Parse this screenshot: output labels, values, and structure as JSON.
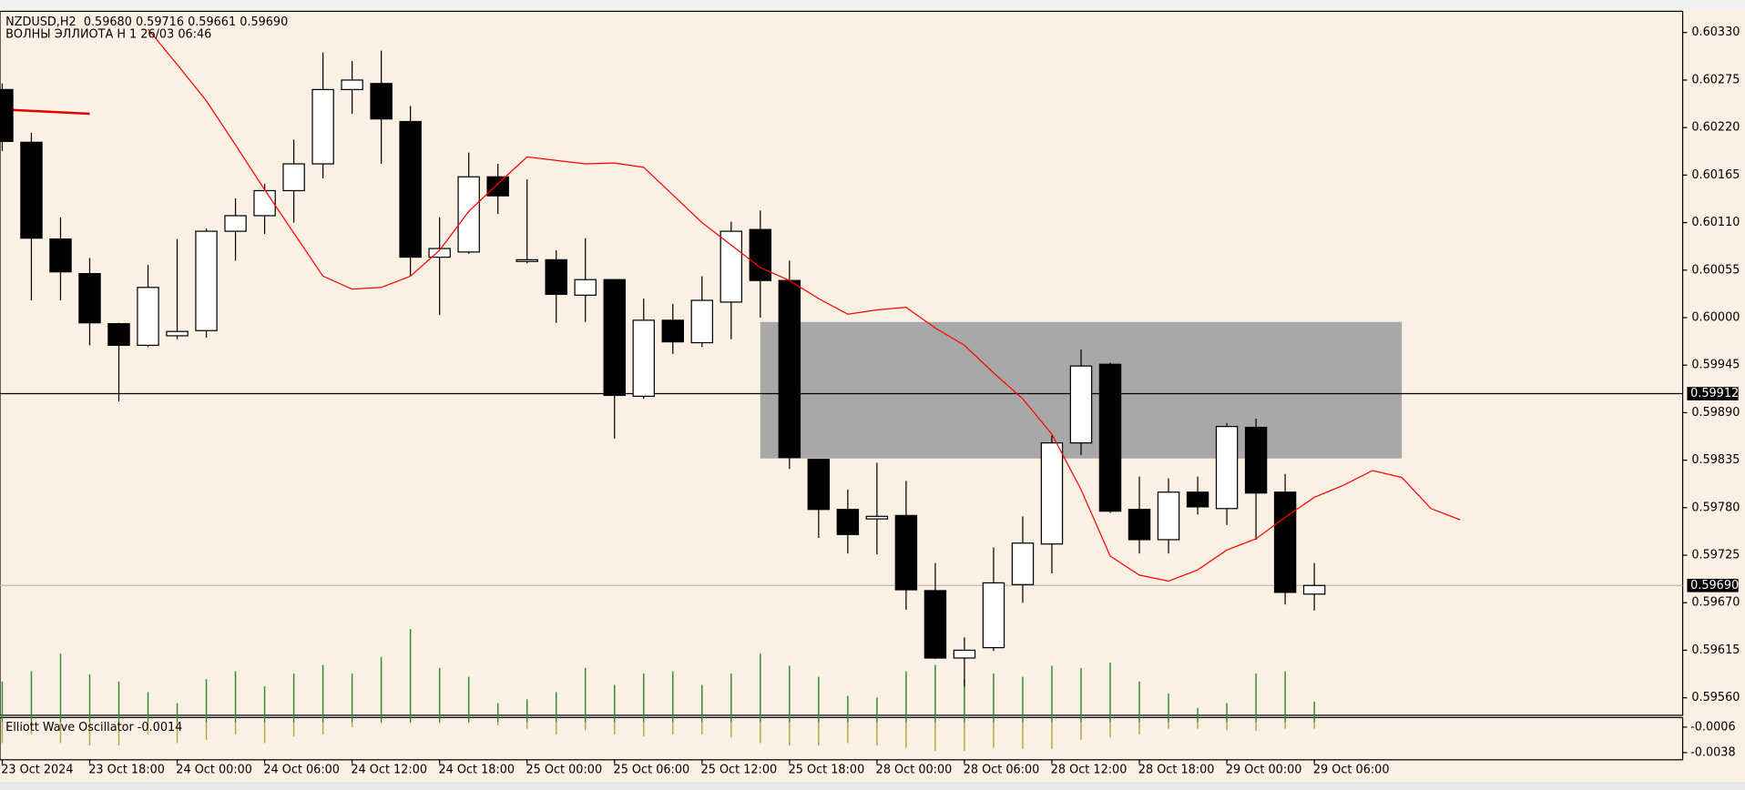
{
  "chart_data": {
    "type": "candlestick",
    "title": "NZDUSD,H2  0.59680 0.59716 0.59661 0.59690",
    "subtitle": "ВОЛНЫ ЭЛЛИОТА H 1 26/03 06:46",
    "categories": [
      "23 Oct 2024",
      null,
      null,
      "23 Oct 18:00",
      null,
      null,
      "24 Oct 00:00",
      null,
      null,
      "24 Oct 06:00",
      null,
      null,
      "24 Oct 12:00",
      null,
      null,
      "24 Oct 18:00",
      null,
      null,
      "25 Oct 00:00",
      null,
      null,
      "25 Oct 06:00",
      null,
      null,
      "25 Oct 12:00",
      null,
      null,
      "25 Oct 18:00",
      null,
      null,
      "28 Oct 00:00",
      null,
      null,
      "28 Oct 06:00",
      null,
      null,
      "28 Oct 12:00",
      null,
      null,
      "28 Oct 18:00",
      null,
      null,
      "29 Oct 00:00",
      null,
      null,
      "29 Oct 06:00",
      null,
      null,
      null,
      null,
      null
    ],
    "open": [
      0.60264,
      0.60203,
      0.60091,
      0.60051,
      0.59993,
      0.59968,
      0.59979,
      0.59985,
      0.601,
      0.60118,
      0.60147,
      0.60178,
      0.60264,
      0.60271,
      0.60227,
      0.6007,
      0.60076,
      0.60163,
      0.60065,
      0.60067,
      0.60026,
      0.60044,
      0.59909,
      0.59997,
      0.59971,
      0.60018,
      0.60102,
      0.60043,
      0.59836,
      0.59778,
      0.59767,
      0.59771,
      0.59684,
      0.59606,
      0.59618,
      0.59691,
      0.59738,
      0.59855,
      0.59946,
      0.59778,
      0.59743,
      0.59798,
      0.59779,
      0.59873,
      0.59798,
      0.5968,
      null,
      null,
      null,
      null,
      null
    ],
    "high": [
      0.60271,
      0.60214,
      0.60116,
      0.60069,
      0.59994,
      0.60061,
      0.60091,
      0.60103,
      0.60138,
      0.60155,
      0.60206,
      0.60307,
      0.60297,
      0.60309,
      0.60245,
      0.60116,
      0.60191,
      0.60178,
      0.6016,
      0.60078,
      0.60092,
      0.60044,
      0.60022,
      0.60016,
      0.60048,
      0.60111,
      0.60124,
      0.60066,
      0.59836,
      0.59801,
      0.59832,
      0.59811,
      0.59716,
      0.5963,
      0.59734,
      0.5977,
      0.59864,
      0.59963,
      0.59948,
      0.59816,
      0.59814,
      0.59816,
      0.59878,
      0.59883,
      0.59819,
      0.59716,
      null,
      null,
      null,
      null,
      null
    ],
    "low": [
      0.60193,
      0.6002,
      0.6002,
      0.59968,
      0.59903,
      0.59966,
      0.59975,
      0.59977,
      0.60066,
      0.60097,
      0.6011,
      0.60161,
      0.60236,
      0.60178,
      0.60048,
      0.60003,
      0.60074,
      0.6012,
      0.60063,
      0.59994,
      0.59995,
      0.5986,
      0.59906,
      0.59958,
      0.59966,
      0.59975,
      0.6,
      0.59825,
      0.59745,
      0.59727,
      0.59726,
      0.59662,
      0.59605,
      0.59573,
      0.59614,
      0.5967,
      0.59704,
      0.59841,
      0.59774,
      0.59727,
      0.59727,
      0.59772,
      0.5976,
      0.59743,
      0.59668,
      0.59661,
      null,
      null,
      null,
      null,
      null
    ],
    "close": [
      0.60204,
      0.60092,
      0.60053,
      0.59994,
      0.59968,
      0.60035,
      0.59984,
      0.601,
      0.60118,
      0.60147,
      0.60178,
      0.60264,
      0.60275,
      0.6023,
      0.6007,
      0.6008,
      0.60163,
      0.60141,
      0.60067,
      0.60027,
      0.60044,
      0.5991,
      0.59997,
      0.59972,
      0.6002,
      0.601,
      0.60043,
      0.59838,
      0.59778,
      0.59749,
      0.5977,
      0.59685,
      0.59606,
      0.59615,
      0.59693,
      0.59739,
      0.59855,
      0.59944,
      0.59776,
      0.59743,
      0.59798,
      0.59781,
      0.59874,
      0.59797,
      0.59682,
      0.5969,
      null,
      null,
      null,
      null,
      null
    ],
    "up_color": "#ffffff",
    "down_color": "#000000",
    "moving_average": {
      "color": "#ff0000",
      "values": [
        null,
        null,
        null,
        null,
        null,
        0.60334,
        0.60293,
        0.60251,
        0.602,
        0.60148,
        0.60098,
        0.60048,
        0.60033,
        0.60035,
        0.60048,
        0.60078,
        0.60123,
        0.60155,
        0.60186,
        0.60182,
        0.60178,
        0.60179,
        0.60174,
        0.60142,
        0.6011,
        0.60084,
        0.60058,
        0.60043,
        0.60022,
        0.60004,
        0.60009,
        0.60012,
        0.59988,
        0.59968,
        0.59936,
        0.59906,
        0.59865,
        0.59801,
        0.59724,
        0.59702,
        0.59695,
        0.59708,
        0.59731,
        0.59744,
        0.59769,
        0.59792,
        0.59806,
        0.59823,
        0.59815,
        0.59779,
        0.59766
      ]
    },
    "trend_line": {
      "x": [
        0,
        3
      ],
      "values": [
        0.60241,
        0.60236
      ],
      "color": "#e00000"
    },
    "zone": {
      "x": [
        26,
        48
      ],
      "values": [
        0.59995,
        0.59837
      ],
      "color": "#a8a8a8"
    },
    "hlines": [
      {
        "value": 0.59912,
        "label": "0.59912",
        "color": "#000000"
      },
      {
        "value": 0.5969,
        "label": "0.59690",
        "color": "#c0b8b0"
      }
    ],
    "ylim": [
      0.59541,
      0.60352
    ],
    "yticks": [
      {
        "value": 0.6033,
        "label": "0.60330"
      },
      0.60275,
      {
        "value": 0.6022,
        "label": "0.60220"
      },
      0.60165,
      {
        "value": 0.6011,
        "label": "0.60110"
      },
      0.60055,
      {
        "value": 0.6,
        "label": "0.60000"
      },
      0.59945,
      {
        "value": 0.5989,
        "label": "0.59890"
      },
      0.59835,
      {
        "value": 0.5978,
        "label": "0.59780"
      },
      0.59725,
      {
        "value": 0.5967,
        "label": "0.59670"
      },
      0.59615,
      {
        "value": 0.5956,
        "label": "0.59560"
      }
    ],
    "oscillator": {
      "name": "Elliott Wave Oscillator -0.0014",
      "y2lim": [
        -0.0047,
        0.0006
      ],
      "y2ticks": [
        -0.0006,
        -0.0038
      ],
      "series": [
        {
          "color": "#2e8b2e",
          "axis": "y2",
          "values": [
            0.0051,
            0.0064,
            0.0086,
            0.006,
            0.0051,
            0.0038,
            0.0024,
            0.0054,
            0.0064,
            0.0045,
            0.0061,
            0.0072,
            0.0061,
            0.0082,
            0.0117,
            0.0068,
            0.0057,
            0.0024,
            0.0029,
            0.0038,
            0.0068,
            0.0047,
            0.0061,
            0.0064,
            0.0047,
            0.0061,
            0.0086,
            0.0071,
            0.0057,
            0.0033,
            0.0031,
            0.0064,
            0.0072,
            0.0054,
            0.0061,
            0.0057,
            0.0071,
            0.0068,
            0.0075,
            0.0051,
            0.0036,
            0.0018,
            0.0024,
            0.0061,
            0.0064,
            0.0026,
            null,
            null,
            null,
            null,
            null
          ]
        },
        {
          "color": "#b5a642",
          "axis": "y2",
          "values": [
            -0.0026,
            -0.0015,
            -0.0026,
            -0.0029,
            -0.0029,
            -0.0015,
            -0.0026,
            -0.0022,
            -0.0015,
            -0.0026,
            -0.0018,
            -0.0015,
            -0.0006,
            -0.0001,
            -0.0001,
            -0.0001,
            -0.0001,
            -0.0004,
            -0.0008,
            -0.0015,
            -0.001,
            -0.0015,
            -0.0018,
            -0.0015,
            -0.0015,
            -0.0019,
            -0.0026,
            -0.0029,
            -0.0029,
            -0.0026,
            -0.0029,
            -0.0032,
            -0.0036,
            -0.0036,
            -0.0032,
            -0.0033,
            -0.0033,
            -0.0022,
            -0.0019,
            -0.0015,
            -0.0008,
            -0.0008,
            -0.001,
            -0.0011,
            -0.0008,
            -0.0008,
            null,
            null,
            null,
            null,
            null
          ]
        }
      ]
    }
  }
}
